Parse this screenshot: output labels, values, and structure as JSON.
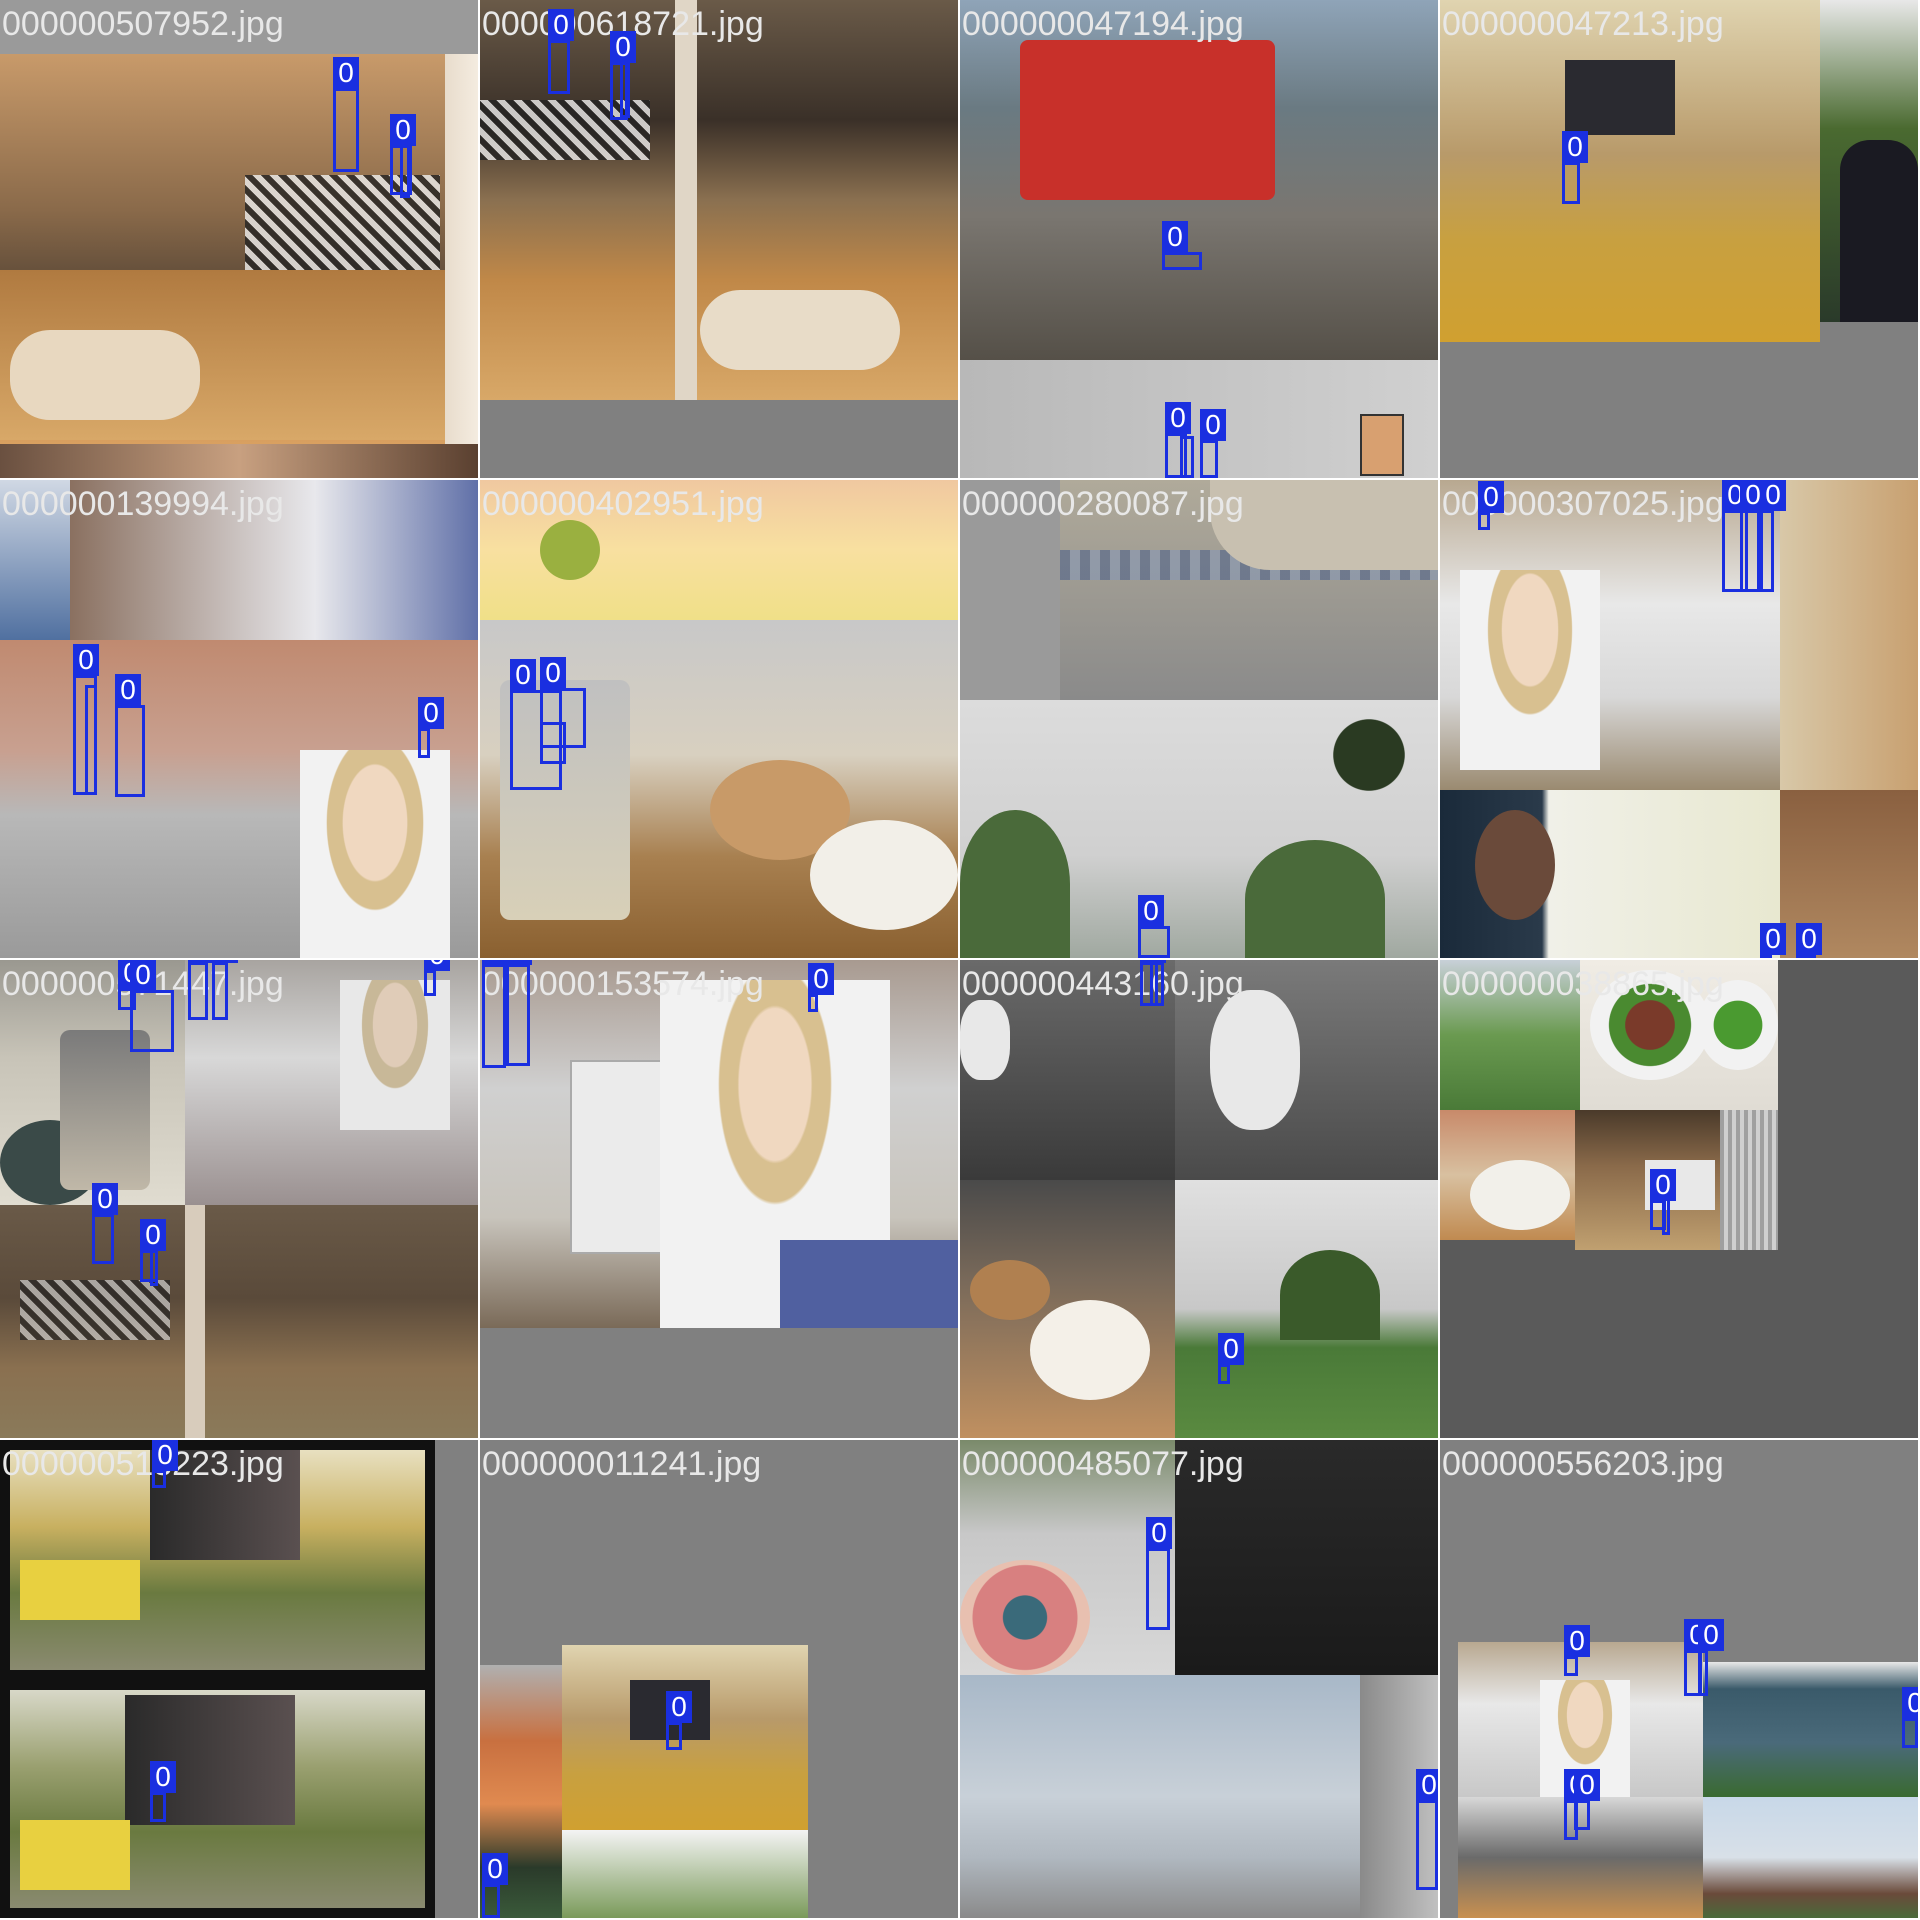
{
  "colors": {
    "background_gray": "#808080",
    "box_blue": "#1a2fe0",
    "label_text": "#e8e8e8"
  },
  "mosaic": {
    "cells": [
      {
        "file": "000000507952.jpg",
        "box_label": "0"
      },
      {
        "file": "000000618721.jpg",
        "box_label": "0"
      },
      {
        "file": "000000047194.jpg",
        "box_label": "0"
      },
      {
        "file": "000000047213.jpg",
        "box_label": "0"
      },
      {
        "file": "000000139994.jpg",
        "box_label": "0"
      },
      {
        "file": "000000402951.jpg",
        "box_label": "0"
      },
      {
        "file": "000000280087.jpg",
        "box_label": "0"
      },
      {
        "file": "000000307025.jpg",
        "box_label": "0"
      },
      {
        "file": "000000571447.jpg",
        "box_label": "0"
      },
      {
        "file": "000000153574.jpg",
        "box_label": "0"
      },
      {
        "file": "000000443160.jpg",
        "box_label": "0"
      },
      {
        "file": "000000038865.jpg",
        "box_label": "0"
      },
      {
        "file": "000000513223.jpg",
        "box_label": "0"
      },
      {
        "file": "000000011241.jpg",
        "box_label": "0"
      },
      {
        "file": "000000485077.jpg",
        "box_label": "0"
      },
      {
        "file": "000000556203.jpg",
        "box_label": "0"
      }
    ]
  }
}
